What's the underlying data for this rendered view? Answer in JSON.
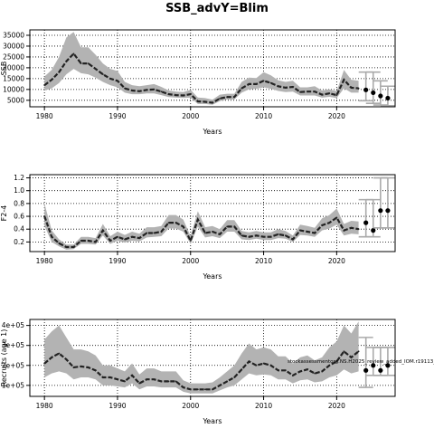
{
  "main_title": "SSB_advY=Blim",
  "colors": {
    "band": "#b3b3b3",
    "line": "#222222",
    "proj": "#aaaaaa",
    "grid": "#000000"
  },
  "chart_data": [
    {
      "type": "line",
      "ylabel": "SSB",
      "xlabel": "Years",
      "xlim": [
        1978,
        2028
      ],
      "ylim": [
        2000,
        37500
      ],
      "x_ticks": [
        1980,
        1990,
        2000,
        2010,
        2020
      ],
      "y_ticks": [
        5000,
        10000,
        15000,
        20000,
        25000,
        30000,
        35000
      ],
      "y_tick_labels": [
        "5000",
        "10000",
        "15000",
        "20000",
        "25000",
        "30000",
        "35000"
      ],
      "series": [
        {
          "x": [
            1980,
            1981,
            1982,
            1983,
            1984,
            1985,
            1986,
            1987,
            1988,
            1989,
            1990,
            1991,
            1992,
            1993,
            1994,
            1995,
            1996,
            1997,
            1998,
            1999,
            2000,
            2001,
            2002,
            2003,
            2004,
            2005,
            2006,
            2007,
            2008,
            2009,
            2010,
            2011,
            2012,
            2013,
            2014,
            2015,
            2016,
            2017,
            2018,
            2019,
            2020,
            2021,
            2022,
            2023
          ],
          "y": [
            12000,
            14500,
            18000,
            23000,
            26500,
            22000,
            22000,
            19500,
            17000,
            15000,
            14000,
            10500,
            9500,
            9200,
            9800,
            10000,
            9000,
            7800,
            7400,
            7200,
            7800,
            4500,
            4300,
            3900,
            5800,
            6500,
            6500,
            10500,
            12500,
            12500,
            14000,
            13000,
            11500,
            10800,
            11200,
            8800,
            9000,
            9000,
            7600,
            8200,
            7400,
            14500,
            10800,
            10500
          ],
          "lower": [
            9500,
            10500,
            13000,
            17000,
            19500,
            17500,
            17000,
            15500,
            13500,
            12000,
            11000,
            8500,
            7800,
            7800,
            8200,
            8200,
            7400,
            6500,
            6200,
            6100,
            6200,
            3300,
            3300,
            2900,
            4600,
            5400,
            5400,
            8500,
            10000,
            10300,
            11000,
            10300,
            9300,
            8800,
            9000,
            7200,
            7200,
            7200,
            6200,
            6600,
            6000,
            10500,
            8500,
            8500
          ],
          "upper": [
            16000,
            19000,
            25000,
            34000,
            36500,
            29500,
            29500,
            26000,
            22000,
            19500,
            18500,
            13500,
            12000,
            11500,
            12000,
            12500,
            11200,
            9500,
            9000,
            8800,
            9800,
            6300,
            6000,
            5300,
            7600,
            8000,
            8000,
            13500,
            15500,
            15300,
            18000,
            16500,
            14200,
            13500,
            14000,
            11000,
            11000,
            11500,
            9500,
            10000,
            9200,
            19000,
            14500,
            14000
          ]
        }
      ],
      "projection": {
        "x": [
          2024,
          2025,
          2026,
          2027
        ],
        "y": [
          9800,
          8500,
          7000,
          6000
        ],
        "lower": [
          4800,
          3600,
          2800,
          2500
        ],
        "upper": [
          18000,
          18000,
          14000,
          11500
        ]
      }
    },
    {
      "type": "line",
      "ylabel": "F2-4",
      "xlabel": "Years",
      "xlim": [
        1978,
        2028
      ],
      "ylim": [
        0.05,
        1.25
      ],
      "x_ticks": [
        1980,
        1990,
        2000,
        2010,
        2020
      ],
      "y_ticks": [
        0.2,
        0.4,
        0.6,
        0.8,
        1.0,
        1.2
      ],
      "y_tick_labels": [
        "0.2",
        "0.4",
        "0.6",
        "0.8",
        "1.0",
        "1.2"
      ],
      "series": [
        {
          "x": [
            1980,
            1981,
            1982,
            1983,
            1984,
            1985,
            1986,
            1987,
            1988,
            1989,
            1990,
            1991,
            1992,
            1993,
            1994,
            1995,
            1996,
            1997,
            1998,
            1999,
            2000,
            2001,
            2002,
            2003,
            2004,
            2005,
            2006,
            2007,
            2008,
            2009,
            2010,
            2011,
            2012,
            2013,
            2014,
            2015,
            2016,
            2017,
            2018,
            2019,
            2020,
            2021,
            2022,
            2023
          ],
          "y": [
            0.6,
            0.28,
            0.18,
            0.12,
            0.12,
            0.22,
            0.22,
            0.2,
            0.38,
            0.22,
            0.28,
            0.24,
            0.28,
            0.26,
            0.34,
            0.34,
            0.36,
            0.5,
            0.5,
            0.44,
            0.22,
            0.55,
            0.34,
            0.36,
            0.32,
            0.44,
            0.44,
            0.3,
            0.28,
            0.3,
            0.28,
            0.28,
            0.32,
            0.3,
            0.24,
            0.38,
            0.36,
            0.34,
            0.46,
            0.5,
            0.58,
            0.38,
            0.42,
            0.4
          ],
          "lower": [
            0.45,
            0.2,
            0.13,
            0.08,
            0.09,
            0.17,
            0.17,
            0.16,
            0.3,
            0.17,
            0.22,
            0.19,
            0.22,
            0.21,
            0.27,
            0.28,
            0.29,
            0.41,
            0.41,
            0.36,
            0.17,
            0.44,
            0.27,
            0.29,
            0.26,
            0.36,
            0.36,
            0.24,
            0.23,
            0.25,
            0.23,
            0.23,
            0.26,
            0.25,
            0.2,
            0.31,
            0.3,
            0.28,
            0.38,
            0.41,
            0.47,
            0.3,
            0.33,
            0.32
          ],
          "upper": [
            0.8,
            0.38,
            0.24,
            0.16,
            0.16,
            0.28,
            0.28,
            0.26,
            0.48,
            0.29,
            0.36,
            0.31,
            0.36,
            0.33,
            0.43,
            0.43,
            0.45,
            0.62,
            0.62,
            0.55,
            0.29,
            0.68,
            0.43,
            0.45,
            0.4,
            0.54,
            0.54,
            0.37,
            0.35,
            0.37,
            0.35,
            0.35,
            0.4,
            0.37,
            0.3,
            0.47,
            0.45,
            0.42,
            0.57,
            0.62,
            0.72,
            0.48,
            0.53,
            0.52
          ]
        }
      ],
      "projection": {
        "x": [
          2024,
          2025,
          2026,
          2027
        ],
        "y": [
          0.5,
          0.38,
          0.69,
          0.69
        ],
        "lower": [
          0.28,
          0.28,
          0.42,
          0.42
        ],
        "upper": [
          0.86,
          0.86,
          1.2,
          1.2
        ]
      }
    },
    {
      "type": "line",
      "ylabel": "Recruits (age 1)",
      "xlabel": "Years",
      "annotation": "stockassessmentorg.NS.H2025_review_added_IOM.r19113_git:1c8",
      "xlim": [
        1978,
        2028
      ],
      "ylim": [
        45000,
        430000
      ],
      "x_ticks": [
        1980,
        1990,
        2000,
        2010,
        2020
      ],
      "y_ticks": [
        100000,
        200000,
        300000,
        400000
      ],
      "y_tick_labels": [
        "1e+05",
        "2e+05",
        "3e+05",
        "4e+05"
      ],
      "series": [
        {
          "x": [
            1980,
            1981,
            1982,
            1983,
            1984,
            1985,
            1986,
            1987,
            1988,
            1989,
            1990,
            1991,
            1992,
            1993,
            1994,
            1995,
            1996,
            1997,
            1998,
            1999,
            2000,
            2001,
            2002,
            2003,
            2004,
            2005,
            2006,
            2007,
            2008,
            2009,
            2010,
            2011,
            2012,
            2013,
            2014,
            2015,
            2016,
            2017,
            2018,
            2019,
            2020,
            2021,
            2022,
            2023
          ],
          "y": [
            210000,
            240000,
            260000,
            230000,
            190000,
            195000,
            190000,
            175000,
            140000,
            140000,
            130000,
            120000,
            150000,
            110000,
            130000,
            130000,
            120000,
            120000,
            120000,
            90000,
            80000,
            80000,
            80000,
            80000,
            100000,
            120000,
            140000,
            180000,
            220000,
            200000,
            210000,
            200000,
            175000,
            175000,
            150000,
            170000,
            180000,
            160000,
            170000,
            200000,
            220000,
            270000,
            240000,
            270000
          ],
          "lower": [
            140000,
            160000,
            170000,
            160000,
            130000,
            140000,
            140000,
            130000,
            100000,
            100000,
            95000,
            90000,
            110000,
            80000,
            95000,
            95000,
            90000,
            90000,
            90000,
            68000,
            60000,
            60000,
            60000,
            60000,
            75000,
            90000,
            100000,
            130000,
            160000,
            150000,
            155000,
            150000,
            130000,
            130000,
            110000,
            125000,
            130000,
            115000,
            120000,
            140000,
            150000,
            180000,
            160000,
            170000
          ],
          "upper": [
            330000,
            370000,
            400000,
            340000,
            280000,
            280000,
            270000,
            250000,
            200000,
            200000,
            185000,
            170000,
            210000,
            155000,
            185000,
            185000,
            170000,
            170000,
            170000,
            125000,
            110000,
            110000,
            110000,
            115000,
            140000,
            170000,
            200000,
            260000,
            310000,
            280000,
            290000,
            280000,
            245000,
            245000,
            210000,
            240000,
            250000,
            225000,
            240000,
            290000,
            320000,
            400000,
            360000,
            420000
          ]
        }
      ],
      "projection": {
        "x": [
          2024,
          2025,
          2026,
          2027
        ],
        "y": [
          175000,
          200000,
          175000,
          200000
        ],
        "lower": [
          90000,
          150000,
          150000,
          150000
        ],
        "upper": [
          340000,
          290000,
          290000,
          290000
        ]
      }
    }
  ]
}
